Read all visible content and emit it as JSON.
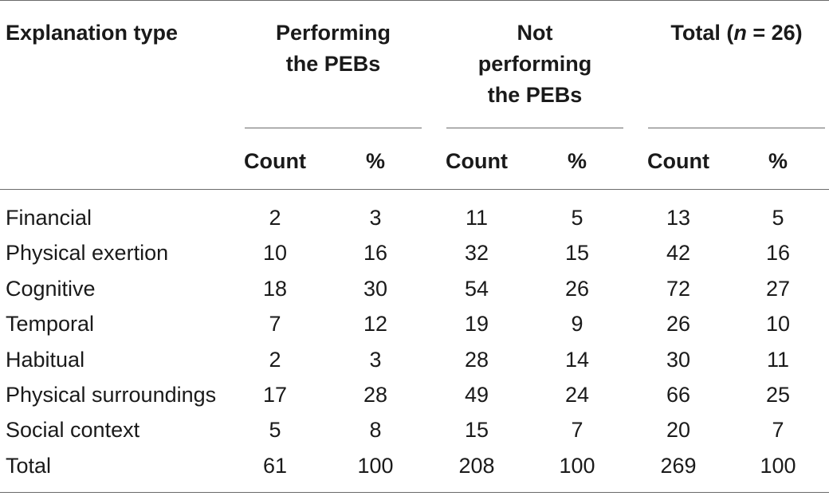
{
  "table": {
    "first_col_header": "Explanation type",
    "groups": [
      {
        "lines": [
          "Performing",
          "the PEBs"
        ]
      },
      {
        "lines": [
          "Not",
          "performing",
          "the PEBs"
        ]
      },
      {
        "lines": [
          "Total (",
          "n",
          " = 26)"
        ]
      }
    ],
    "sub_headers": [
      "Count",
      "%",
      "Count",
      "%",
      "Count",
      "%"
    ],
    "rows": [
      {
        "label": "Financial",
        "values": [
          "2",
          "3",
          "11",
          "5",
          "13",
          "5"
        ]
      },
      {
        "label": "Physical exertion",
        "values": [
          "10",
          "16",
          "32",
          "15",
          "42",
          "16"
        ]
      },
      {
        "label": "Cognitive",
        "values": [
          "18",
          "30",
          "54",
          "26",
          "72",
          "27"
        ]
      },
      {
        "label": "Temporal",
        "values": [
          "7",
          "12",
          "19",
          "9",
          "26",
          "10"
        ]
      },
      {
        "label": "Habitual",
        "values": [
          "2",
          "3",
          "28",
          "14",
          "30",
          "11"
        ]
      },
      {
        "label": "Physical surroundings",
        "values": [
          "17",
          "28",
          "49",
          "24",
          "66",
          "25"
        ]
      },
      {
        "label": "Social context",
        "values": [
          "5",
          "8",
          "15",
          "7",
          "20",
          "7"
        ]
      },
      {
        "label": "Total",
        "values": [
          "61",
          "100",
          "208",
          "100",
          "269",
          "100"
        ]
      }
    ]
  }
}
